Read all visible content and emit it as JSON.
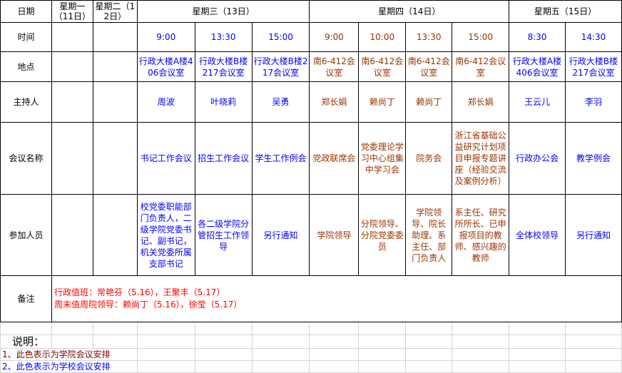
{
  "labels": {
    "date": "日期",
    "time": "时间",
    "place": "地点",
    "host": "主持人",
    "meeting": "会议名称",
    "attendees": "参加人员",
    "remarks": "备注"
  },
  "days": [
    {
      "label": "星期一（11日）",
      "span": 1
    },
    {
      "label": "星期二（12日）",
      "span": 1
    },
    {
      "label": "星期三（13日）",
      "span": 3
    },
    {
      "label": "星期四（14日）",
      "span": 4
    },
    {
      "label": "星期五（15日）",
      "span": 2
    }
  ],
  "colors": {
    "school": "#0000ff",
    "college": "#993300",
    "remarks": "#ff0000"
  },
  "meetings": [
    {
      "type": "empty",
      "time": "",
      "place": "",
      "host": "",
      "name": "",
      "attendees": ""
    },
    {
      "type": "empty",
      "time": "",
      "place": "",
      "host": "",
      "name": "",
      "attendees": ""
    },
    {
      "type": "school",
      "time": "9:00",
      "place": "行政大楼A楼406会议室",
      "host": "周波",
      "name": "书记工作会议",
      "attendees": "校党委职能部门负责人，二级学院党委书记、副书记，机关党委所属支部书记"
    },
    {
      "type": "school",
      "time": "13:30",
      "place": "行政大楼B楼217会议室",
      "host": "叶晓莉",
      "name": "招生工作会议",
      "attendees": "各二级学院分管招生工作领导"
    },
    {
      "type": "school",
      "time": "15:00",
      "place": "行政大楼B楼217会议室",
      "host": "吴勇",
      "name": "学生工作例会",
      "attendees": "另行通知"
    },
    {
      "type": "college",
      "time": "9:00",
      "place": "南6-412会议室",
      "host": "郑长娟",
      "name": "党政联席会",
      "attendees": "学院领导"
    },
    {
      "type": "college",
      "time": "10:00",
      "place": "南6-412会议室",
      "host": "赖尚丁",
      "name": "党委理论学习中心组集中学习会",
      "attendees": "分院领导、分院党委委员"
    },
    {
      "type": "college",
      "time": "13:30",
      "place": "南6-412会议室",
      "host": "赖尚丁",
      "name": "院务会",
      "attendees": "学院领导、院长助理、系主任、部门负责人"
    },
    {
      "type": "college",
      "time": "15:00",
      "place": "南6-412会议室",
      "host": "郑长娟",
      "name": "浙江省基础公益研究计划项目申报专题讲座（经验交流及案例分析）",
      "attendees": "系主任、研究所所长、已申报项目的教师、感兴趣的教师"
    },
    {
      "type": "school",
      "time": "8:30",
      "place": "行政大楼A楼406会议室",
      "host": "王云儿",
      "name": "行政办公会",
      "attendees": "全体校领导"
    },
    {
      "type": "school",
      "time": "14:30",
      "place": "行政大楼B楼217会议室",
      "host": "李羽",
      "name": "教学例会",
      "attendees": "另行通知"
    }
  ],
  "remarks": {
    "line1": "行政值班：常艳芬（5.16），王聚丰（5.17）",
    "line2": "周末值周院领导：赖尚丁（5.16），徐莹（5.17）"
  },
  "legend": {
    "title": "说明：",
    "item1": "1、此色表示为学院会议安排",
    "item2": "2、此色表示为学校会议安排"
  }
}
